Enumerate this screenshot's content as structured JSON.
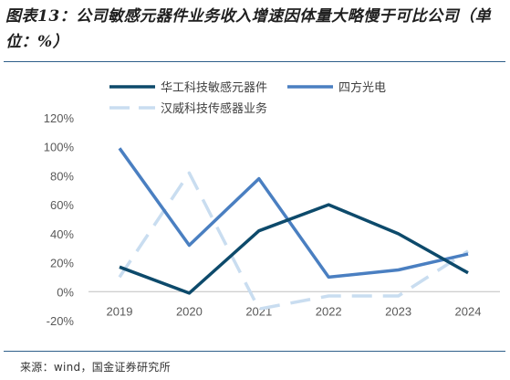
{
  "title": "图表13：公司敏感元器件业务收入增速因体量大略慢于可比公司（单位：%）",
  "source": "来源：wind，国金证券研究所",
  "chart_data": {
    "type": "line",
    "categories": [
      "2019",
      "2020",
      "2021",
      "2022",
      "2023",
      "2024"
    ],
    "ylim": [
      -20,
      120
    ],
    "yticks": [
      -20,
      0,
      20,
      40,
      60,
      80,
      100,
      120
    ],
    "ytick_labels": [
      "-20%",
      "0%",
      "20%",
      "40%",
      "60%",
      "80%",
      "100%",
      "120%"
    ],
    "grid": false,
    "legend_position": "top",
    "series": [
      {
        "name": "华工科技敏感元器件",
        "values": [
          17,
          -1,
          42,
          60,
          40,
          13
        ],
        "color": "#0d4a6b",
        "dash": "solid",
        "width": 3.5
      },
      {
        "name": "四方光电",
        "values": [
          99,
          32,
          78,
          10,
          15,
          26
        ],
        "color": "#4a7fc1",
        "dash": "solid",
        "width": 3.5
      },
      {
        "name": "汉威科技传感器业务",
        "values": [
          10,
          82,
          -12,
          -3,
          -3,
          28
        ],
        "color": "#c9ddf0",
        "dash": "dashed",
        "width": 3.5
      }
    ]
  }
}
